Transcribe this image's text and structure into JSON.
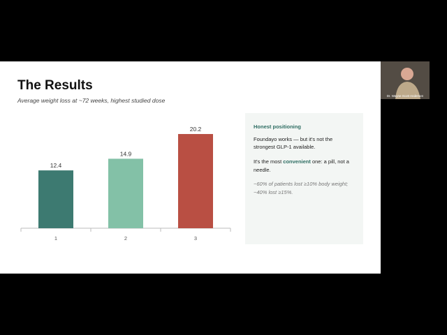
{
  "slide": {
    "title": "The Results",
    "subtitle": "Average weight loss at ~72 weeks, highest studied dose"
  },
  "chart_data": {
    "type": "bar",
    "categories": [
      "1",
      "2",
      "3"
    ],
    "values": [
      12.4,
      14.9,
      20.2
    ],
    "colors": [
      "#3d7a71",
      "#83c1a7",
      "#b94f43"
    ],
    "ylim": [
      0,
      22
    ]
  },
  "panel": {
    "heading": "Honest positioning",
    "paragraphs": [
      "Foundayo works — but it's not the strongest GLP-1 available."
    ],
    "emphasis": {
      "before": "It's the most ",
      "bold": "convenient",
      "after": " one: a pill, not a needle."
    },
    "note": "~60% of patients lost ≥10% body weight; ~40% lost ≥15%."
  },
  "participant": {
    "name": "Dr. Wayne Scott Andersen"
  }
}
